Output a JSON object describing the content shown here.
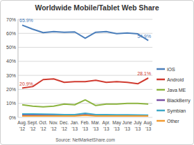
{
  "chart_data": {
    "type": "line",
    "title": "Worldwide Mobile/Tablet Web Share",
    "source": "Source: NetMarketShare.com",
    "categories": [
      "Aug. '12",
      "Sept. '12",
      "Oct. '12",
      "Nov. '12",
      "Dec. '12",
      "Jan. '13",
      "Feb. '13",
      "Mar. '13",
      "Apr. '13",
      "May '13",
      "June '13",
      "July '13",
      "Aug. '13"
    ],
    "ylim": [
      0,
      70
    ],
    "yticks": [
      {
        "value": 0,
        "label": "0%"
      },
      {
        "value": 10,
        "label": "10%"
      },
      {
        "value": 20,
        "label": "20%"
      },
      {
        "value": 30,
        "label": "30%"
      },
      {
        "value": 40,
        "label": "40%"
      },
      {
        "value": 50,
        "label": "50%"
      },
      {
        "value": 60,
        "label": "60%"
      },
      {
        "value": 70,
        "label": "70%"
      }
    ],
    "grid": true,
    "legend": "right",
    "data_labels": true,
    "series": [
      {
        "name": "iOS",
        "color": "#4a7ebb",
        "values": [
          65.9,
          63.0,
          60.5,
          61.2,
          60.8,
          61.0,
          56.5,
          60.8,
          61.2,
          59.8,
          60.3,
          59.6,
          54.9
        ],
        "value_labels": [
          "65.9%",
          null,
          null,
          null,
          null,
          null,
          null,
          null,
          null,
          null,
          null,
          null,
          "54.9%"
        ]
      },
      {
        "name": "Android",
        "color": "#d03a2f",
        "values": [
          20.9,
          22.0,
          27.0,
          27.5,
          25.0,
          25.5,
          25.5,
          26.5,
          25.0,
          25.5,
          25.0,
          24.0,
          28.1
        ],
        "value_labels": [
          "20.9%",
          null,
          null,
          null,
          null,
          null,
          null,
          null,
          null,
          null,
          null,
          null,
          "28.1%"
        ]
      },
      {
        "name": "Java ME",
        "color": "#8cb43f",
        "values": [
          9.0,
          8.0,
          7.5,
          8.0,
          9.5,
          9.0,
          12.5,
          8.5,
          9.5,
          9.5,
          10.0,
          10.0,
          9.5
        ]
      },
      {
        "name": "BlackBerry",
        "color": "#7a52a4",
        "values": [
          1.5,
          1.5,
          1.5,
          1.5,
          1.5,
          1.5,
          2.0,
          1.5,
          1.5,
          1.5,
          1.5,
          1.5,
          1.2
        ]
      },
      {
        "name": "Symbian",
        "color": "#3fa9c8",
        "values": [
          2.5,
          2.5,
          2.3,
          2.2,
          2.0,
          2.0,
          3.0,
          2.0,
          2.0,
          1.8,
          1.8,
          1.7,
          1.6
        ]
      },
      {
        "name": "Other",
        "color": "#f39a2e",
        "values": [
          1.0,
          1.0,
          1.0,
          1.0,
          1.0,
          1.0,
          1.5,
          1.0,
          1.0,
          1.0,
          1.0,
          1.0,
          1.0
        ]
      }
    ]
  }
}
